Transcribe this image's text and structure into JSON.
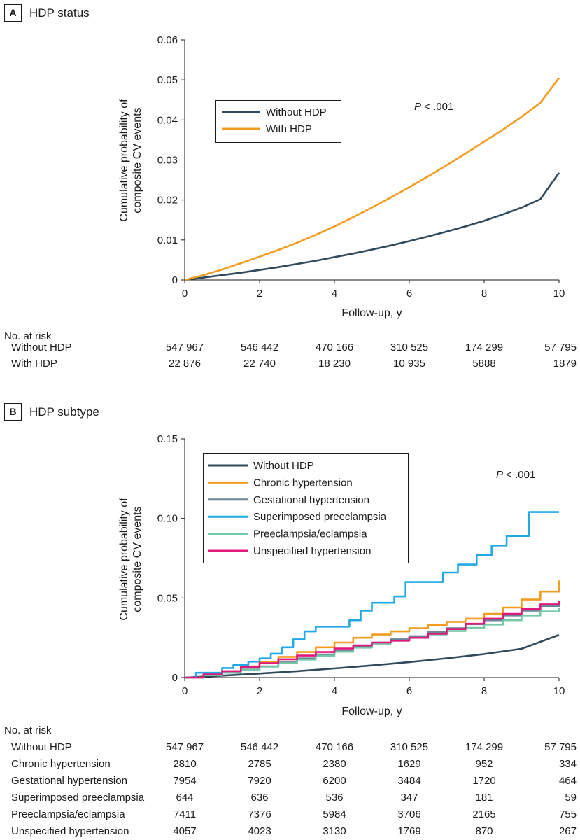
{
  "chart_data": [
    {
      "type": "line",
      "panel_letter": "A",
      "title": "HDP status",
      "xlabel": "Follow-up, y",
      "ylabel_lines": [
        "Cumulative probability of",
        "composite CV events"
      ],
      "xlim": [
        0,
        10
      ],
      "ylim": [
        0,
        0.06
      ],
      "xticks": [
        0,
        2,
        4,
        6,
        8,
        10
      ],
      "yticks": [
        0,
        0.01,
        0.02,
        0.03,
        0.04,
        0.05,
        0.06
      ],
      "ytick_labels": [
        "0",
        "0.01",
        "0.02",
        "0.03",
        "0.04",
        "0.05",
        "0.06"
      ],
      "grid": false,
      "legend_position": "upper-left",
      "annotation": {
        "p_prefix": "P",
        "p_rest": " < .001"
      },
      "series": [
        {
          "name": "Without HDP",
          "color": "#2f4a5c",
          "step": false,
          "x": [
            0,
            0.5,
            1,
            1.5,
            2,
            2.5,
            3,
            3.5,
            4,
            4.5,
            5,
            5.5,
            6,
            6.5,
            7,
            7.5,
            8,
            8.5,
            9,
            9.5,
            10
          ],
          "y": [
            0,
            0.0006,
            0.0012,
            0.0018,
            0.0025,
            0.0032,
            0.004,
            0.0048,
            0.0057,
            0.0066,
            0.0076,
            0.0086,
            0.0097,
            0.0109,
            0.0121,
            0.0134,
            0.0148,
            0.0164,
            0.0181,
            0.0202,
            0.0268
          ]
        },
        {
          "name": "With HDP",
          "color": "#f39c1f",
          "step": false,
          "x": [
            0,
            0.5,
            1,
            1.5,
            2,
            2.5,
            3,
            3.5,
            4,
            4.5,
            5,
            5.5,
            6,
            6.5,
            7,
            7.5,
            8,
            8.5,
            9,
            9.5,
            10
          ],
          "y": [
            0,
            0.0012,
            0.0026,
            0.0042,
            0.0058,
            0.0075,
            0.0093,
            0.0113,
            0.0134,
            0.0157,
            0.0181,
            0.0206,
            0.0232,
            0.0259,
            0.0287,
            0.0316,
            0.0346,
            0.0376,
            0.0408,
            0.0443,
            0.0505
          ]
        }
      ],
      "risk_table": {
        "heading": "No. at risk",
        "rows": [
          {
            "label": "Without HDP",
            "values": [
              "547 967",
              "546 442",
              "470 166",
              "310 525",
              "174 299",
              "57 795"
            ]
          },
          {
            "label": "With HDP",
            "values": [
              "22 876",
              "22 740",
              "18 230",
              "10 935",
              "5888",
              "1879"
            ]
          }
        ]
      }
    },
    {
      "type": "line",
      "panel_letter": "B",
      "title": "HDP subtype",
      "xlabel": "Follow-up, y",
      "ylabel_lines": [
        "Cumulative probability of",
        "composite CV events"
      ],
      "xlim": [
        0,
        10
      ],
      "ylim": [
        0,
        0.15
      ],
      "xticks": [
        0,
        2,
        4,
        6,
        8,
        10
      ],
      "yticks": [
        0,
        0.05,
        0.1,
        0.15
      ],
      "ytick_labels": [
        "0",
        "0.05",
        "0.10",
        "0.15"
      ],
      "grid": false,
      "legend_position": "upper-left",
      "annotation": {
        "p_prefix": "P",
        "p_rest": " < .001"
      },
      "series": [
        {
          "name": "Without HDP",
          "color": "#2f4a5c",
          "step": false,
          "x": [
            0,
            1,
            2,
            3,
            4,
            5,
            6,
            7,
            8,
            9,
            10
          ],
          "y": [
            0,
            0.0012,
            0.0025,
            0.004,
            0.0057,
            0.0076,
            0.0097,
            0.0121,
            0.0148,
            0.0181,
            0.0268
          ]
        },
        {
          "name": "Chronic hypertension",
          "color": "#f39c1f",
          "step": true,
          "x": [
            0,
            0.5,
            1,
            1.5,
            2,
            2.5,
            3,
            3.5,
            4,
            4.5,
            5,
            5.5,
            6,
            6.5,
            7,
            7.5,
            8,
            8.5,
            9,
            9.5,
            10
          ],
          "y": [
            0,
            0.002,
            0.004,
            0.007,
            0.01,
            0.013,
            0.016,
            0.019,
            0.022,
            0.025,
            0.027,
            0.029,
            0.031,
            0.033,
            0.035,
            0.037,
            0.04,
            0.044,
            0.049,
            0.054,
            0.061
          ]
        },
        {
          "name": "Gestational hypertension",
          "color": "#6c8296",
          "step": true,
          "x": [
            0,
            0.5,
            1,
            1.5,
            2,
            2.5,
            3,
            3.5,
            4,
            4.5,
            5,
            5.5,
            6,
            6.5,
            7,
            7.5,
            8,
            8.5,
            9,
            9.5,
            10
          ],
          "y": [
            0,
            0.0015,
            0.003,
            0.005,
            0.007,
            0.0095,
            0.012,
            0.0145,
            0.017,
            0.0195,
            0.022,
            0.024,
            0.026,
            0.0285,
            0.031,
            0.0335,
            0.036,
            0.039,
            0.042,
            0.045,
            0.048
          ]
        },
        {
          "name": "Superimposed preeclampsia",
          "color": "#22a8e6",
          "step": true,
          "x": [
            0,
            0.3,
            1,
            1.3,
            1.7,
            2,
            2.3,
            2.6,
            2.9,
            3.2,
            3.5,
            4.4,
            4.7,
            5,
            5.6,
            5.9,
            6.9,
            7.3,
            7.8,
            8.2,
            8.6,
            9.2,
            10
          ],
          "y": [
            0,
            0.003,
            0.006,
            0.008,
            0.01,
            0.012,
            0.015,
            0.019,
            0.024,
            0.029,
            0.032,
            0.036,
            0.042,
            0.047,
            0.051,
            0.06,
            0.066,
            0.071,
            0.077,
            0.083,
            0.089,
            0.104,
            0.104
          ]
        },
        {
          "name": "Preeclampsia/eclampsia",
          "color": "#74c9a6",
          "step": true,
          "x": [
            0,
            0.5,
            1,
            1.5,
            2,
            2.5,
            3,
            3.5,
            4,
            4.5,
            5,
            5.5,
            6,
            6.5,
            7,
            7.5,
            8,
            8.5,
            9,
            9.5,
            10
          ],
          "y": [
            0,
            0.0015,
            0.003,
            0.0048,
            0.0068,
            0.009,
            0.0113,
            0.0137,
            0.0162,
            0.0188,
            0.0213,
            0.0232,
            0.025,
            0.0271,
            0.0292,
            0.0312,
            0.0333,
            0.036,
            0.039,
            0.0415,
            0.044
          ]
        },
        {
          "name": "Unspecified hypertension",
          "color": "#e0197d",
          "step": true,
          "x": [
            0,
            0.5,
            1,
            1.5,
            2,
            2.5,
            3,
            3.5,
            4,
            4.5,
            5,
            5.5,
            6,
            6.5,
            7,
            7.5,
            8,
            8.5,
            9,
            9.5,
            10
          ],
          "y": [
            0,
            0.002,
            0.004,
            0.0065,
            0.009,
            0.0115,
            0.0138,
            0.016,
            0.0182,
            0.0202,
            0.022,
            0.0232,
            0.025,
            0.0275,
            0.0305,
            0.0338,
            0.037,
            0.04,
            0.043,
            0.046,
            0.048
          ]
        }
      ],
      "risk_table": {
        "heading": "No. at risk",
        "rows": [
          {
            "label": "Without HDP",
            "values": [
              "547 967",
              "546 442",
              "470 166",
              "310 525",
              "174 299",
              "57 795"
            ]
          },
          {
            "label": "Chronic hypertension",
            "values": [
              "2810",
              "2785",
              "2380",
              "1629",
              "952",
              "334"
            ]
          },
          {
            "label": "Gestational hypertension",
            "values": [
              "7954",
              "7920",
              "6200",
              "3484",
              "1720",
              "464"
            ]
          },
          {
            "label": "Superimposed preeclampsia",
            "values": [
              "644",
              "636",
              "536",
              "347",
              "181",
              "59"
            ]
          },
          {
            "label": "Preeclampsia/eclampsia",
            "values": [
              "7411",
              "7376",
              "5984",
              "3706",
              "2165",
              "755"
            ]
          },
          {
            "label": "Unspecified hypertension",
            "values": [
              "4057",
              "4023",
              "3130",
              "1769",
              "870",
              "267"
            ]
          }
        ]
      }
    }
  ]
}
